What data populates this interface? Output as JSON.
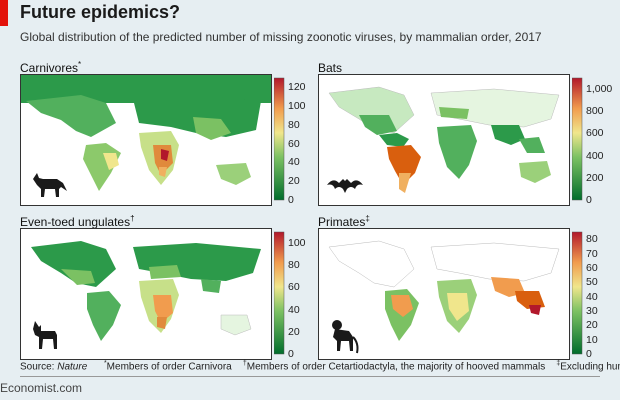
{
  "title": "Future epidemics?",
  "subtitle": "Global distribution of the predicted number of missing zoonotic viruses, by mammalian order, 2017",
  "colors": {
    "accent": "#e3120b",
    "scale_low": "#006d2c",
    "scale_mid": "#f0e68c",
    "scale_high": "#b2182b",
    "ocean": "#ffffff"
  },
  "panels": [
    {
      "id": "carnivores",
      "title": "Carnivores",
      "mark": "*",
      "icon": "fox-icon",
      "ticks": [
        "120",
        "100",
        "80",
        "60",
        "40",
        "20",
        "0"
      ],
      "scale_max": 130
    },
    {
      "id": "bats",
      "title": "Bats",
      "mark": "",
      "icon": "bat-icon",
      "ticks": [
        "1,000",
        "800",
        "600",
        "400",
        "200",
        "0"
      ],
      "scale_max": 1100
    },
    {
      "id": "ungulates",
      "title": "Even-toed ungulates",
      "mark": "†",
      "icon": "goat-icon",
      "ticks": [
        "100",
        "80",
        "60",
        "40",
        "20",
        "0"
      ],
      "scale_max": 110
    },
    {
      "id": "primates",
      "title": "Primates",
      "mark": "‡",
      "icon": "monkey-icon",
      "ticks": [
        "80",
        "70",
        "60",
        "50",
        "40",
        "30",
        "20",
        "10",
        "0"
      ],
      "scale_max": 85
    }
  ],
  "footer": {
    "source_label": "Source:",
    "source_name": "Nature",
    "note1_mark": "*",
    "note1": "Members of order Carnivora",
    "note2_mark": "†",
    "note2": "Members of order Cetartiodactyla, the majority of hooved mammals",
    "note3_mark": "‡",
    "note3": "Excluding humans"
  },
  "brand": "Economist.com"
}
